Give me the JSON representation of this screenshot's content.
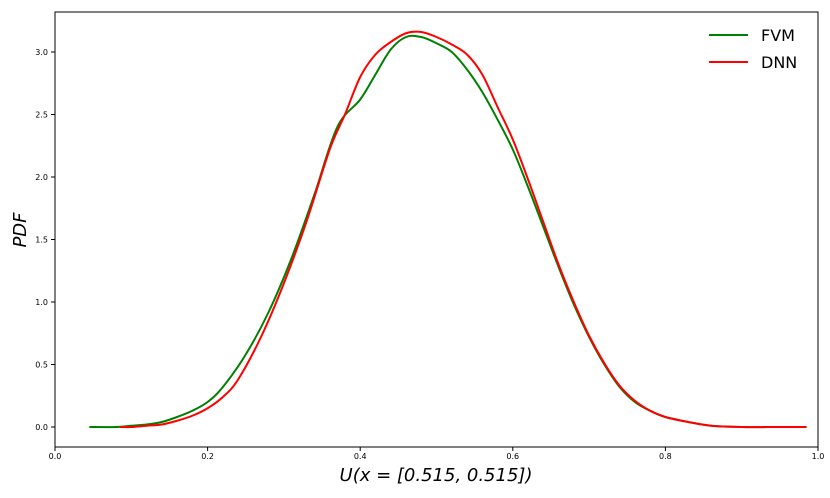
{
  "chart_data": {
    "type": "line",
    "xlabel": "U(x = [0.515, 0.515])",
    "ylabel": "PDF",
    "xlim": [
      0.0,
      1.0
    ],
    "ylim": [
      -0.16,
      3.32
    ],
    "xticks": [
      "0.0",
      "0.2",
      "0.4",
      "0.6",
      "0.8",
      "1.0"
    ],
    "yticks": [
      "0.0",
      "0.5",
      "1.0",
      "1.5",
      "2.0",
      "2.5",
      "3.0"
    ],
    "grid": false,
    "legend_position": "top-right",
    "series": [
      {
        "name": "FVM",
        "color": "#008000",
        "x": [
          0.045,
          0.08,
          0.1,
          0.12,
          0.14,
          0.16,
          0.18,
          0.2,
          0.22,
          0.25,
          0.28,
          0.31,
          0.34,
          0.37,
          0.4,
          0.42,
          0.44,
          0.46,
          0.48,
          0.5,
          0.52,
          0.54,
          0.56,
          0.58,
          0.6,
          0.62,
          0.64,
          0.66,
          0.68,
          0.7,
          0.72,
          0.74,
          0.76,
          0.78,
          0.8,
          0.83,
          0.86,
          0.9,
          0.95,
          0.985
        ],
        "y": [
          0.0,
          0.0,
          0.01,
          0.02,
          0.04,
          0.08,
          0.13,
          0.2,
          0.32,
          0.58,
          0.92,
          1.35,
          1.86,
          2.4,
          2.62,
          2.82,
          3.02,
          3.12,
          3.12,
          3.07,
          3.0,
          2.86,
          2.68,
          2.46,
          2.22,
          1.92,
          1.6,
          1.28,
          0.98,
          0.72,
          0.5,
          0.32,
          0.2,
          0.13,
          0.08,
          0.04,
          0.01,
          0.0,
          0.0,
          0.0
        ]
      },
      {
        "name": "DNN",
        "color": "#ff0000",
        "x": [
          0.085,
          0.1,
          0.12,
          0.14,
          0.16,
          0.18,
          0.2,
          0.22,
          0.24,
          0.27,
          0.3,
          0.33,
          0.36,
          0.38,
          0.4,
          0.42,
          0.44,
          0.46,
          0.48,
          0.5,
          0.52,
          0.54,
          0.56,
          0.58,
          0.6,
          0.62,
          0.64,
          0.66,
          0.68,
          0.7,
          0.72,
          0.74,
          0.76,
          0.78,
          0.8,
          0.83,
          0.86,
          0.9,
          0.95,
          0.985
        ],
        "y": [
          0.0,
          0.0,
          0.01,
          0.02,
          0.05,
          0.09,
          0.15,
          0.24,
          0.38,
          0.72,
          1.15,
          1.65,
          2.22,
          2.5,
          2.8,
          2.98,
          3.08,
          3.15,
          3.16,
          3.12,
          3.06,
          2.98,
          2.82,
          2.56,
          2.3,
          1.98,
          1.64,
          1.3,
          1.0,
          0.73,
          0.51,
          0.33,
          0.21,
          0.13,
          0.08,
          0.04,
          0.01,
          0.0,
          0.0,
          0.0
        ]
      }
    ]
  }
}
